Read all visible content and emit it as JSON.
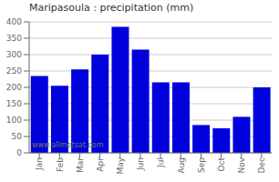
{
  "chart_data": {
    "type": "bar",
    "title": "Maripasoula : precipitation (mm)",
    "categories": [
      "Jan",
      "Feb",
      "Mar",
      "Apr",
      "May",
      "Jun",
      "Jul",
      "Aug",
      "Sep",
      "Oct",
      "Nov",
      "Dec"
    ],
    "values": [
      235,
      205,
      255,
      300,
      385,
      315,
      215,
      215,
      85,
      75,
      110,
      200
    ],
    "color": "#0000dd",
    "ylim": [
      0,
      400
    ],
    "yticks": [
      0,
      50,
      100,
      150,
      200,
      250,
      300,
      350,
      400
    ],
    "grid": true,
    "annotations": [
      "www.allmetsat.com"
    ]
  }
}
